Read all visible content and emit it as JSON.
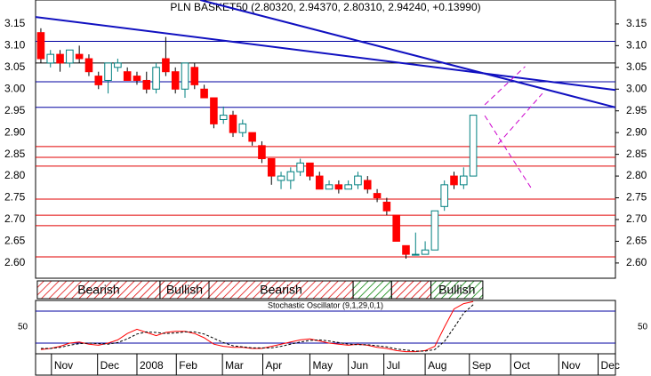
{
  "chart_data": {
    "type": "candlestick",
    "title": "PLN BASKET50 (2.80320, 2.94370, 2.80310, 2.94240, +0.13990)",
    "open": [
      3.13,
      3.06,
      3.08,
      3.06,
      3.08,
      3.07,
      3.03,
      3.02,
      3.05,
      3.04,
      3.03,
      3.02,
      3.0,
      3.07,
      3.04,
      3.0,
      3.05,
      3.0,
      2.98,
      2.93,
      2.94,
      2.9,
      2.9,
      2.87,
      2.84,
      2.79,
      2.79,
      2.81,
      2.83,
      2.8,
      2.77,
      2.78,
      2.77,
      2.78,
      2.79,
      2.76,
      2.74,
      2.71,
      2.64,
      2.62,
      2.62,
      2.63,
      2.73,
      2.8,
      2.78,
      2.8
    ],
    "high": [
      3.14,
      3.09,
      3.09,
      3.09,
      3.1,
      3.08,
      3.04,
      3.06,
      3.07,
      3.05,
      3.04,
      3.04,
      3.06,
      3.12,
      3.05,
      3.06,
      3.06,
      3.01,
      2.98,
      2.96,
      2.95,
      2.93,
      2.9,
      2.88,
      2.84,
      2.81,
      2.82,
      2.84,
      2.83,
      2.81,
      2.79,
      2.79,
      2.79,
      2.81,
      2.8,
      2.77,
      2.75,
      2.71,
      2.64,
      2.67,
      2.65,
      2.72,
      2.79,
      2.81,
      2.82,
      2.94
    ],
    "low": [
      3.06,
      3.05,
      3.04,
      3.05,
      3.06,
      3.03,
      3.0,
      2.99,
      3.04,
      3.02,
      3.01,
      2.99,
      2.99,
      3.03,
      2.99,
      2.98,
      3.0,
      2.98,
      2.91,
      2.92,
      2.89,
      2.89,
      2.87,
      2.83,
      2.78,
      2.77,
      2.77,
      2.8,
      2.79,
      2.77,
      2.77,
      2.76,
      2.77,
      2.77,
      2.76,
      2.74,
      2.71,
      2.65,
      2.61,
      2.62,
      2.62,
      2.63,
      2.72,
      2.77,
      2.77,
      2.8
    ],
    "close": [
      3.07,
      3.08,
      3.06,
      3.09,
      3.07,
      3.04,
      3.01,
      3.06,
      3.06,
      3.02,
      3.02,
      3.0,
      3.05,
      3.04,
      3.0,
      3.06,
      3.01,
      2.98,
      2.92,
      2.94,
      2.9,
      2.92,
      2.88,
      2.84,
      2.8,
      2.8,
      2.81,
      2.83,
      2.8,
      2.77,
      2.78,
      2.77,
      2.78,
      2.8,
      2.77,
      2.75,
      2.72,
      2.65,
      2.62,
      2.62,
      2.63,
      2.72,
      2.78,
      2.78,
      2.8,
      2.94
    ],
    "up_color": "#ffffff",
    "up_border": "#008080",
    "down_color": "#ff0000",
    "xlim": [
      -0.55,
      59.8
    ],
    "xticks": [
      {
        "value": 1.1,
        "label": "Nov"
      },
      {
        "value": 5.9,
        "label": "Dec"
      },
      {
        "value": 10.0,
        "label": "2008"
      },
      {
        "value": 14.1,
        "label": "Feb"
      },
      {
        "value": 18.9,
        "label": "Mar"
      },
      {
        "value": 23.1,
        "label": "Apr"
      },
      {
        "value": 28.0,
        "label": "May"
      },
      {
        "value": 32.0,
        "label": "Jun"
      },
      {
        "value": 35.7,
        "label": "Jul"
      },
      {
        "value": 40.0,
        "label": "Aug"
      },
      {
        "value": 44.6,
        "label": "Sep"
      },
      {
        "value": 48.9,
        "label": "Oct"
      },
      {
        "value": 53.9,
        "label": "Nov"
      },
      {
        "value": 58.0,
        "label": "Dec"
      }
    ],
    "ylim": [
      2.565,
      3.205
    ],
    "yticks": [
      {
        "value": 2.6,
        "label": "2.60"
      },
      2.65,
      {
        "value": 2.7,
        "label": "2.70"
      },
      2.75,
      {
        "value": 2.8,
        "label": "2.80"
      },
      2.85,
      {
        "value": 2.9,
        "label": "2.90"
      },
      2.95,
      {
        "value": 3.0,
        "label": "3.00"
      },
      3.05,
      {
        "value": 3.1,
        "label": "3.10"
      },
      3.15
    ],
    "hlines": [
      {
        "value": 3.11,
        "color": "#0000a0"
      },
      {
        "value": 3.06,
        "color": "#000000"
      },
      {
        "value": 3.017,
        "color": "#0000a0"
      },
      {
        "value": 2.958,
        "color": "#0000a0"
      },
      {
        "value": 2.868,
        "color": "#e00000"
      },
      {
        "value": 2.843,
        "color": "#e00000"
      },
      {
        "value": 2.823,
        "color": "#e00000"
      },
      {
        "value": 2.747,
        "color": "#e00000"
      },
      {
        "value": 2.71,
        "color": "#e00000"
      },
      {
        "value": 2.686,
        "color": "#e00000"
      },
      {
        "value": 2.614,
        "color": "#e00000"
      }
    ],
    "trendlines": [
      {
        "x": [
          -0.55,
          59.8
        ],
        "y": [
          3.166,
          2.998
        ],
        "color": "#1010c0"
      },
      {
        "x": [
          16.6,
          59.8
        ],
        "y": [
          3.205,
          2.958
        ],
        "color": "#1010c0"
      }
    ],
    "projections": [
      {
        "x": [
          46.2,
          50.4
        ],
        "y": [
          2.964,
          3.052
        ],
        "color": "#cc00cc"
      },
      {
        "x": [
          47.6,
          52.2
        ],
        "y": [
          2.874,
          2.99
        ],
        "color": "#cc00cc"
      },
      {
        "x": [
          46.2,
          51.1
        ],
        "y": [
          2.939,
          2.77
        ],
        "color": "#cc00cc"
      }
    ],
    "patterns": [
      {
        "label": "Bearish",
        "x": [
          -0.37,
          12.4
        ],
        "color": "#e00000"
      },
      {
        "label": "Bullish",
        "x": [
          12.4,
          17.5
        ],
        "color": "#e00000"
      },
      {
        "label": "Bearish",
        "x": [
          17.5,
          32.5
        ],
        "color": "#e00000"
      },
      {
        "label": null,
        "x": [
          32.5,
          36.5
        ],
        "color": "#008000"
      },
      {
        "label": null,
        "x": [
          36.5,
          40.6
        ],
        "color": "#e00000"
      },
      {
        "label": "Bullish",
        "x": [
          40.6,
          46.0
        ],
        "color": "#008000"
      }
    ],
    "oscillator": {
      "title": "Stochastic Oscillator (9,1,29,0,1)",
      "ylim": [
        0,
        100
      ],
      "yticks": [
        50
      ],
      "hlines": [
        20,
        80
      ],
      "series": [
        {
          "color": "#ff0000",
          "dashed": false,
          "values": [
            8,
            10,
            14,
            20,
            22,
            18,
            16,
            20,
            26,
            38,
            46,
            40,
            34,
            40,
            42,
            42,
            38,
            30,
            18,
            14,
            12,
            12,
            10,
            10,
            14,
            18,
            22,
            26,
            28,
            24,
            20,
            18,
            16,
            18,
            16,
            12,
            10,
            6,
            4,
            4,
            6,
            14,
            50,
            84,
            94,
            98
          ]
        },
        {
          "color": "#000000",
          "dashed": true,
          "values": [
            10,
            10,
            12,
            16,
            19,
            20,
            19,
            18,
            21,
            28,
            37,
            41,
            40,
            38,
            39,
            41,
            41,
            37,
            29,
            21,
            15,
            13,
            11,
            11,
            11,
            14,
            18,
            22,
            25,
            26,
            24,
            21,
            18,
            17,
            17,
            15,
            13,
            9,
            7,
            5,
            5,
            8,
            23,
            49,
            76,
            92
          ]
        }
      ]
    }
  }
}
